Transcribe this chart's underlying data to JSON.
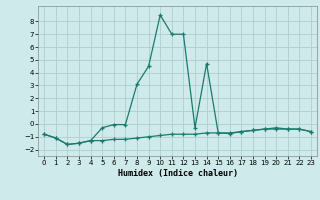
{
  "xlabel": "Humidex (Indice chaleur)",
  "ylabel": "",
  "line_color": "#1a7a6e",
  "background_color": "#ceeaea",
  "grid_color": "#aecece",
  "xlim": [
    -0.5,
    23.5
  ],
  "ylim": [
    -2.5,
    9.2
  ],
  "yticks": [
    -2,
    -1,
    0,
    1,
    2,
    3,
    4,
    5,
    6,
    7,
    8
  ],
  "xticks": [
    0,
    1,
    2,
    3,
    4,
    5,
    6,
    7,
    8,
    9,
    10,
    11,
    12,
    13,
    14,
    15,
    16,
    17,
    18,
    19,
    20,
    21,
    22,
    23
  ],
  "line1_x": [
    0,
    1,
    2,
    3,
    4,
    5,
    6,
    7,
    8,
    9,
    10,
    11,
    12,
    13,
    14,
    15,
    16,
    17,
    18,
    19,
    20,
    21,
    22,
    23
  ],
  "line1_y": [
    -0.8,
    -1.1,
    -1.6,
    -1.5,
    -1.3,
    -0.3,
    -0.05,
    -0.05,
    3.1,
    4.5,
    8.5,
    7.0,
    7.0,
    -0.3,
    4.7,
    -0.7,
    -0.75,
    -0.6,
    -0.5,
    -0.4,
    -0.3,
    -0.4,
    -0.4,
    -0.6
  ],
  "line2_x": [
    0,
    1,
    2,
    3,
    4,
    5,
    6,
    7,
    8,
    9,
    10,
    11,
    12,
    13,
    14,
    15,
    16,
    17,
    18,
    19,
    20,
    21,
    22,
    23
  ],
  "line2_y": [
    -0.8,
    -1.1,
    -1.6,
    -1.5,
    -1.3,
    -1.3,
    -1.2,
    -1.2,
    -1.1,
    -1.0,
    -0.9,
    -0.8,
    -0.8,
    -0.8,
    -0.7,
    -0.7,
    -0.7,
    -0.6,
    -0.5,
    -0.4,
    -0.4,
    -0.4,
    -0.4,
    -0.6
  ]
}
